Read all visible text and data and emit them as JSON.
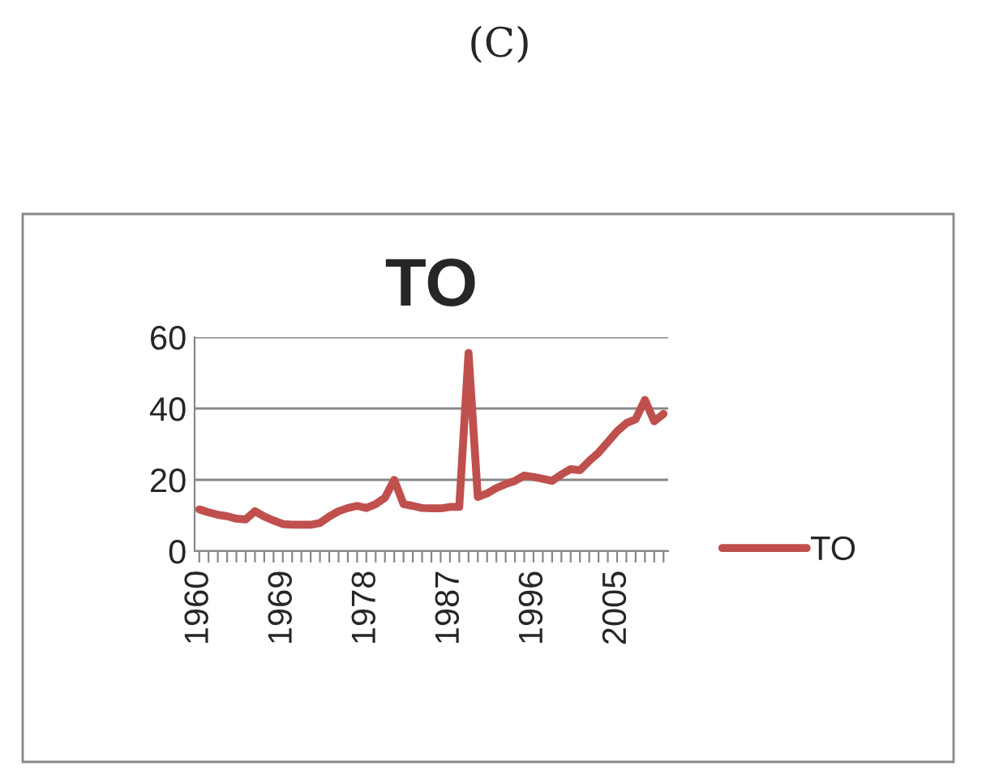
{
  "chart_data": {
    "type": "line",
    "title": "TO",
    "annotations": [
      "(C)"
    ],
    "categories": [
      "1960",
      null,
      null,
      null,
      null,
      null,
      null,
      null,
      null,
      "1969",
      null,
      null,
      null,
      null,
      null,
      null,
      null,
      null,
      "1978",
      null,
      null,
      null,
      null,
      null,
      null,
      null,
      null,
      "1987",
      null,
      null,
      null,
      null,
      null,
      null,
      null,
      null,
      "1996",
      null,
      null,
      null,
      null,
      null,
      null,
      null,
      null,
      "2005",
      null,
      null,
      null,
      null,
      null
    ],
    "series": [
      {
        "name": "TO",
        "color": "#c0504d",
        "values": [
          11.7,
          10.9,
          10.2,
          9.8,
          9.1,
          8.9,
          11.2,
          9.7,
          8.6,
          7.6,
          7.4,
          7.4,
          7.4,
          7.9,
          9.7,
          11.2,
          12.1,
          12.7,
          12.1,
          13.2,
          15,
          20,
          13.2,
          12.7,
          12.1,
          12,
          12,
          12.4,
          12.4,
          55.6,
          15.2,
          16.2,
          17.7,
          18.8,
          19.7,
          21.2,
          20.8,
          20.3,
          19.7,
          21.5,
          23,
          22.7,
          25.3,
          27.6,
          30.6,
          33.6,
          35.9,
          37,
          42.4,
          36.4,
          38.5
        ]
      }
    ],
    "ylim": [
      0,
      60
    ],
    "yticks": [
      0,
      20,
      40,
      60
    ],
    "grid": "y",
    "legend": "right",
    "marker": "none",
    "line_style": "solid"
  }
}
